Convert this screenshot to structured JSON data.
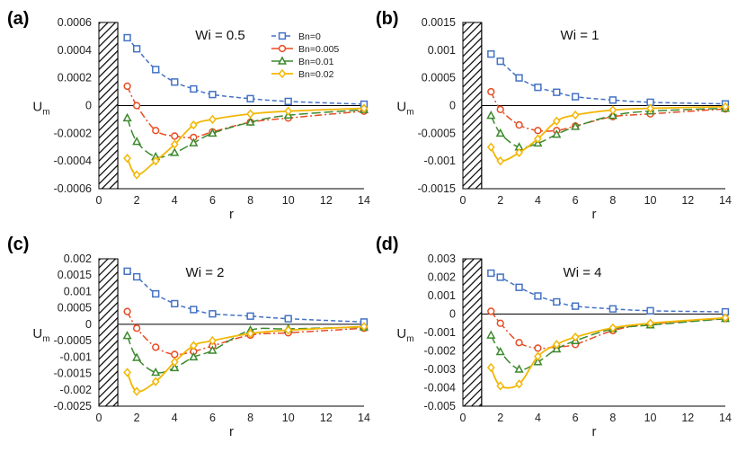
{
  "chart_data": [
    {
      "type": "line",
      "panel_label": "(a)",
      "title": "Wi = 0.5",
      "xlabel": "r",
      "ylabel": "U",
      "ylabel_sub": "m",
      "xlim": [
        0,
        14
      ],
      "ylim": [
        -0.0006,
        0.0006
      ],
      "xticks": [
        "0",
        "2",
        "4",
        "6",
        "8",
        "10",
        "12",
        "14"
      ],
      "yticks": [
        "0.0006",
        "0.0004",
        "0.0002",
        "0",
        "-0.0002",
        "-0.0004",
        "-0.0006"
      ],
      "legend": true,
      "legend_position": "top-right",
      "series": [
        {
          "name": "Bn=0",
          "color": "#4472C4",
          "marker": "square",
          "style": "dashed",
          "x": [
            1.5,
            2,
            3,
            4,
            5,
            6,
            8,
            10,
            14
          ],
          "values": [
            0.00049,
            0.00041,
            0.00026,
            0.00017,
            0.00012,
            8e-05,
            5e-05,
            3e-05,
            1e-05
          ]
        },
        {
          "name": "Bn=0.005",
          "color": "#E84C22",
          "marker": "circle",
          "style": "dashdot",
          "x": [
            1.5,
            2,
            3,
            4,
            5,
            6,
            8,
            10,
            14
          ],
          "values": [
            0.00014,
            0.0,
            -0.00018,
            -0.00022,
            -0.00023,
            -0.00019,
            -0.00012,
            -9e-05,
            -4e-05
          ]
        },
        {
          "name": "Bn=0.01",
          "color": "#3C8A2E",
          "marker": "triangle",
          "style": "longdash",
          "x": [
            1.5,
            2,
            3,
            4,
            5,
            6,
            8,
            10,
            14
          ],
          "values": [
            -9e-05,
            -0.00026,
            -0.00037,
            -0.00034,
            -0.00027,
            -0.0002,
            -0.00012,
            -7e-05,
            -3e-05
          ]
        },
        {
          "name": "Bn=0.02",
          "color": "#F2B705",
          "marker": "diamond",
          "style": "solid",
          "x": [
            1.5,
            2,
            3,
            4,
            5,
            6,
            8,
            10,
            14
          ],
          "values": [
            -0.00038,
            -0.0005,
            -0.0004,
            -0.00028,
            -0.00014,
            -0.0001,
            -6e-05,
            -4e-05,
            -2e-05
          ]
        }
      ]
    },
    {
      "type": "line",
      "panel_label": "(b)",
      "title": "Wi = 1",
      "xlabel": "r",
      "ylabel": "U",
      "ylabel_sub": "m",
      "xlim": [
        0,
        14
      ],
      "ylim": [
        -0.0015,
        0.0015
      ],
      "xticks": [
        "0",
        "2",
        "4",
        "6",
        "8",
        "10",
        "12",
        "14"
      ],
      "yticks": [
        "0.0015",
        "0.001",
        "0.0005",
        "0",
        "-0.0005",
        "-0.001",
        "-0.0015"
      ],
      "legend": false,
      "series": [
        {
          "name": "Bn=0",
          "color": "#4472C4",
          "marker": "square",
          "style": "dashed",
          "x": [
            1.5,
            2,
            3,
            4,
            5,
            6,
            8,
            10,
            14
          ],
          "values": [
            0.00093,
            0.0008,
            0.0005,
            0.00033,
            0.00024,
            0.00016,
            0.0001,
            6e-05,
            3e-05
          ]
        },
        {
          "name": "Bn=0.005",
          "color": "#E84C22",
          "marker": "circle",
          "style": "dashdot",
          "x": [
            1.5,
            2,
            3,
            4,
            5,
            6,
            8,
            10,
            14
          ],
          "values": [
            0.00025,
            -7e-05,
            -0.00035,
            -0.00045,
            -0.00045,
            -0.00037,
            -0.0002,
            -0.00015,
            -6e-05
          ]
        },
        {
          "name": "Bn=0.01",
          "color": "#3C8A2E",
          "marker": "triangle",
          "style": "longdash",
          "x": [
            1.5,
            2,
            3,
            4,
            5,
            6,
            8,
            10,
            14
          ],
          "values": [
            -0.00018,
            -0.0005,
            -0.00075,
            -0.00068,
            -0.00052,
            -0.00038,
            -0.00018,
            -0.0001,
            -5e-05
          ]
        },
        {
          "name": "Bn=0.02",
          "color": "#F2B705",
          "marker": "diamond",
          "style": "solid",
          "x": [
            1.5,
            2,
            3,
            4,
            5,
            6,
            8,
            10,
            14
          ],
          "values": [
            -0.00075,
            -0.001,
            -0.00085,
            -0.0006,
            -0.00028,
            -0.00017,
            -8e-05,
            -5e-05,
            -2e-05
          ]
        }
      ]
    },
    {
      "type": "line",
      "panel_label": "(c)",
      "title": "Wi = 2",
      "xlabel": "r",
      "ylabel": "U",
      "ylabel_sub": "m",
      "xlim": [
        0,
        14
      ],
      "ylim": [
        -0.0025,
        0.002
      ],
      "xticks": [
        "0",
        "2",
        "4",
        "6",
        "8",
        "10",
        "12",
        "14"
      ],
      "yticks": [
        "0.002",
        "0.0015",
        "0.001",
        "0.0005",
        "0",
        "-0.0005",
        "-0.001",
        "-0.0015",
        "-0.002",
        "-0.0025"
      ],
      "legend": false,
      "series": [
        {
          "name": "Bn=0",
          "color": "#4472C4",
          "marker": "square",
          "style": "dashed",
          "x": [
            1.5,
            2,
            3,
            4,
            5,
            6,
            8,
            10,
            14
          ],
          "values": [
            0.00162,
            0.00145,
            0.00093,
            0.00063,
            0.00045,
            0.00032,
            0.00025,
            0.00017,
            7e-05
          ]
        },
        {
          "name": "Bn=0.005",
          "color": "#E84C22",
          "marker": "circle",
          "style": "dashdot",
          "x": [
            1.5,
            2,
            3,
            4,
            5,
            6,
            8,
            10,
            14
          ],
          "values": [
            0.00039,
            -0.00012,
            -0.0007,
            -0.00092,
            -0.00083,
            -0.00066,
            -0.00033,
            -0.00026,
            -0.00012
          ]
        },
        {
          "name": "Bn=0.01",
          "color": "#3C8A2E",
          "marker": "triangle",
          "style": "longdash",
          "x": [
            1.5,
            2,
            3,
            4,
            5,
            6,
            8,
            10,
            14
          ],
          "values": [
            -0.00035,
            -0.00102,
            -0.00147,
            -0.00133,
            -0.001,
            -0.0008,
            -0.00018,
            -0.00014,
            -9e-05
          ]
        },
        {
          "name": "Bn=0.02",
          "color": "#F2B705",
          "marker": "diamond",
          "style": "solid",
          "x": [
            1.5,
            2,
            3,
            4,
            5,
            6,
            8,
            10,
            14
          ],
          "values": [
            -0.00147,
            -0.00205,
            -0.00175,
            -0.00115,
            -0.00065,
            -0.0005,
            -0.00028,
            -0.00018,
            -7e-05
          ]
        }
      ]
    },
    {
      "type": "line",
      "panel_label": "(d)",
      "title": "Wi = 4",
      "xlabel": "r",
      "ylabel": "U",
      "ylabel_sub": "m",
      "xlim": [
        0,
        14
      ],
      "ylim": [
        -0.005,
        0.003
      ],
      "xticks": [
        "0",
        "2",
        "4",
        "6",
        "8",
        "10",
        "12",
        "14"
      ],
      "yticks": [
        "0.003",
        "0.002",
        "0.001",
        "0",
        "-0.001",
        "-0.002",
        "-0.003",
        "-0.004",
        "-0.005"
      ],
      "legend": false,
      "series": [
        {
          "name": "Bn=0",
          "color": "#4472C4",
          "marker": "square",
          "style": "dashed",
          "x": [
            1.5,
            2,
            3,
            4,
            5,
            6,
            8,
            10,
            14
          ],
          "values": [
            0.00222,
            0.002,
            0.00145,
            0.00098,
            0.00066,
            0.00043,
            0.00028,
            0.00018,
            0.00012
          ]
        },
        {
          "name": "Bn=0.005",
          "color": "#E84C22",
          "marker": "circle",
          "style": "dashdot",
          "x": [
            1.5,
            2,
            3,
            4,
            5,
            6,
            8,
            10,
            14
          ],
          "values": [
            0.00015,
            -0.0005,
            -0.00155,
            -0.00185,
            -0.00178,
            -0.00165,
            -0.0009,
            -0.00055,
            -0.00025
          ]
        },
        {
          "name": "Bn=0.01",
          "color": "#3C8A2E",
          "marker": "triangle",
          "style": "longdash",
          "x": [
            1.5,
            2,
            3,
            4,
            5,
            6,
            8,
            10,
            14
          ],
          "values": [
            -0.00115,
            -0.00205,
            -0.003,
            -0.0026,
            -0.0019,
            -0.00145,
            -0.0008,
            -0.0006,
            -0.00025
          ]
        },
        {
          "name": "Bn=0.02",
          "color": "#F2B705",
          "marker": "diamond",
          "style": "solid",
          "x": [
            1.5,
            2,
            3,
            4,
            5,
            6,
            8,
            10,
            14
          ],
          "values": [
            -0.0029,
            -0.0039,
            -0.0038,
            -0.0023,
            -0.00165,
            -0.00125,
            -0.00075,
            -0.0005,
            -0.0002
          ]
        }
      ]
    }
  ]
}
